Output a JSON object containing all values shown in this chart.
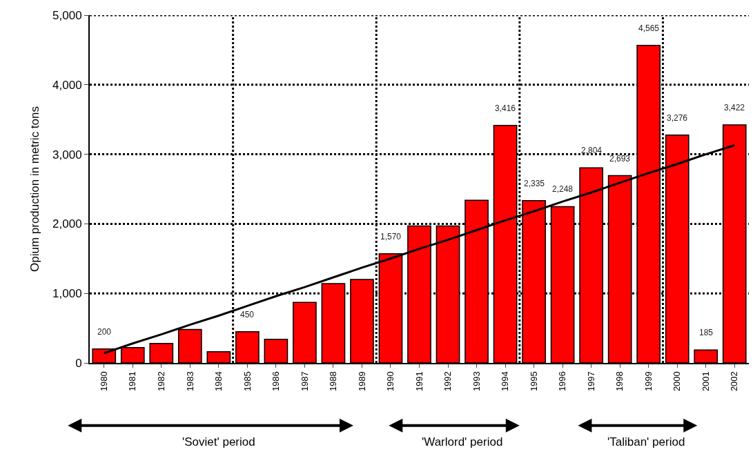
{
  "chart_data": {
    "type": "bar",
    "ylabel": "Opium production in metric tons",
    "categories": [
      "1980",
      "1981",
      "1982",
      "1983",
      "1984",
      "1985",
      "1986",
      "1987",
      "1988",
      "1989",
      "1990",
      "1991",
      "1992",
      "1993",
      "1994",
      "1995",
      "1996",
      "1997",
      "1998",
      "1999",
      "2000",
      "2001",
      "2002"
    ],
    "series": [
      {
        "color": "#ff0000",
        "values": [
          200,
          220,
          280,
          480,
          160,
          450,
          340,
          870,
          1140,
          1200,
          1570,
          1970,
          1970,
          2340,
          3416,
          2335,
          2248,
          2804,
          2693,
          4565,
          3276,
          185,
          3422
        ],
        "value_labels": [
          "200",
          null,
          null,
          null,
          null,
          "450",
          null,
          null,
          null,
          null,
          "1,570",
          null,
          null,
          null,
          "3,416",
          "2,335",
          "2,248",
          "2,804",
          "2,693",
          "4,565",
          "3,276",
          "185",
          "3,422"
        ]
      },
      {
        "type": "line",
        "color": "#000000",
        "values": [
          140,
          280,
          410,
          550,
          680,
          820,
          960,
          1090,
          1230,
          1370,
          1500,
          1640,
          1770,
          1910,
          2050,
          2180,
          2320,
          2450,
          2590,
          2730,
          2860,
          3000,
          3130
        ]
      }
    ],
    "ylim": [
      0,
      5000
    ],
    "yticks": [
      {
        "value": 0,
        "label": "0"
      },
      {
        "value": 1000,
        "label": "1,000"
      },
      {
        "value": 2000,
        "label": "2,000"
      },
      {
        "value": 3000,
        "label": "3,000"
      },
      {
        "value": 4000,
        "label": "4,000"
      },
      {
        "value": 5000,
        "label": "5,000"
      }
    ],
    "grid": true,
    "annotations": [
      "'Soviet' period",
      "'Warlord' period",
      "'Taliban' period"
    ]
  }
}
